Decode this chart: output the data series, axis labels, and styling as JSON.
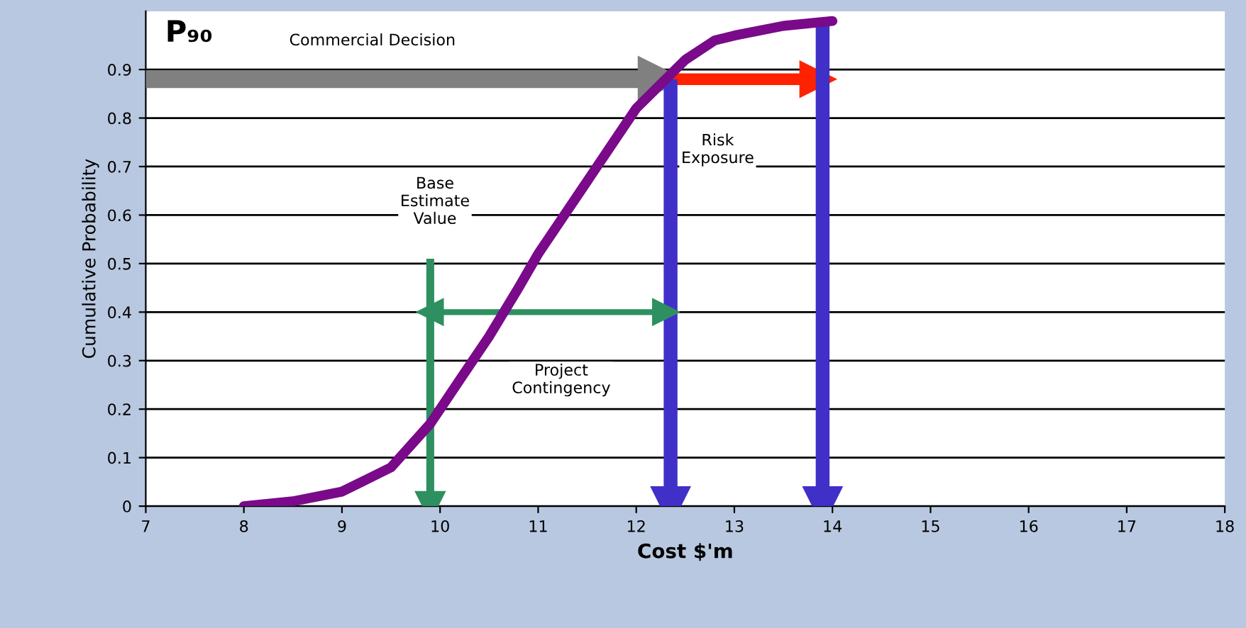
{
  "chart_data": {
    "type": "line",
    "xlabel": "Cost $'m",
    "ylabel": "Cumulative Probability",
    "xlim": [
      7,
      18
    ],
    "xticks": [
      7,
      8,
      9,
      10,
      11,
      12,
      13,
      14,
      15,
      16,
      17,
      18
    ],
    "ylim": [
      0,
      1.02
    ],
    "yticks": [
      0,
      0.1,
      0.2,
      0.3,
      0.4,
      0.5,
      0.6,
      0.7,
      0.8,
      0.9
    ],
    "grid": "y",
    "marker": "none",
    "series": [
      {
        "color": "#7a0a8a",
        "x": [
          8,
          8.5,
          9,
          9.5,
          9.9,
          10.2,
          10.5,
          10.8,
          11,
          11.3,
          11.5,
          11.8,
          12,
          12.3,
          12.5,
          12.8,
          13,
          13.5,
          14
        ],
        "values": [
          0,
          0.01,
          0.03,
          0.08,
          0.17,
          0.26,
          0.35,
          0.45,
          0.52,
          0.61,
          0.67,
          0.76,
          0.82,
          0.88,
          0.92,
          0.96,
          0.97,
          0.99,
          1.0
        ]
      },
      {
        "marker": "triangle",
        "color": "#808080",
        "x": [
          7,
          12.25
        ],
        "values": [
          0.88,
          0.88
        ]
      },
      {
        "marker": "triangle",
        "color": "#ff2200",
        "x": [
          12.3,
          13.85
        ],
        "values": [
          0.88,
          0.88
        ]
      },
      {
        "marker": "triangle",
        "color": "#4030c8",
        "x": [
          12.35,
          12.35
        ],
        "values": [
          0.88,
          0
        ]
      },
      {
        "marker": "triangle",
        "color": "#4030c8",
        "x": [
          13.9,
          13.9
        ],
        "values": [
          1.0,
          0
        ]
      },
      {
        "marker": "triangle",
        "color": "#2e9060",
        "x": [
          9.9,
          9.9
        ],
        "values": [
          0.51,
          0
        ]
      },
      {
        "marker": "triangle",
        "color": "#2e9060",
        "x": [
          9.9,
          12.3
        ],
        "values": [
          0.4,
          0.4
        ]
      }
    ],
    "annotations": [
      "P₉₀",
      "Commercial Decision",
      "Base Estimate Value",
      "Risk Exposure",
      "Project Contingency"
    ]
  }
}
